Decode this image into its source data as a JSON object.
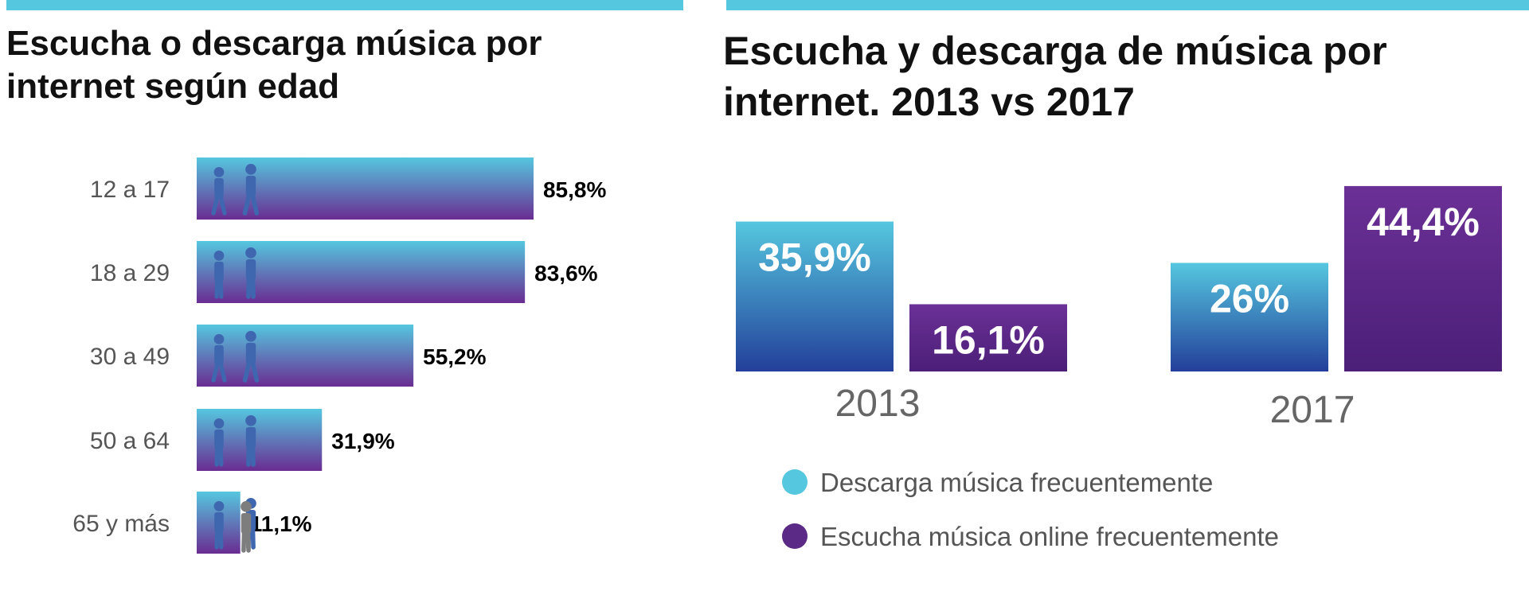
{
  "colors": {
    "accent_line": "#55c7df",
    "cyan": "#55c7df",
    "purple": "#5b2a86",
    "navy": "#233f9a"
  },
  "left_title": "Escucha o descarga música por internet según edad",
  "right_title": "Escucha y descarga de música por internet. 2013 vs  2017",
  "chart_data": [
    {
      "type": "bar",
      "orientation": "horizontal",
      "title": "Escucha o descarga música por internet según edad",
      "categories": [
        "12 a 17",
        "18 a 29",
        "30 a 49",
        "50 a 64",
        "65 y más"
      ],
      "values": [
        85.8,
        83.6,
        55.2,
        31.9,
        11.1
      ],
      "value_labels": [
        "85,8%",
        "83,6%",
        "55,2%",
        "31,9%",
        "11,1%"
      ],
      "icons": [
        "walking-youths-icon",
        "standing-couple-icon",
        "walking-adults-icon",
        "standing-adults-icon",
        "seniors-icon"
      ],
      "grid": false
    },
    {
      "type": "bar",
      "orientation": "vertical",
      "title": "Escucha y descarga de música por internet. 2013 vs  2017",
      "categories": [
        "2013",
        "2017"
      ],
      "series": [
        {
          "name": "Descarga música frecuentemente",
          "values": [
            35.9,
            26
          ],
          "value_labels": [
            "35,9%",
            "26%"
          ],
          "color": "#55c7df"
        },
        {
          "name": "Escucha música online frecuentemente",
          "values": [
            16.1,
            44.4
          ],
          "value_labels": [
            "16,1%",
            "44,4%"
          ],
          "color": "#5b2a86"
        }
      ],
      "legend_position": "bottom",
      "grid": false
    }
  ]
}
